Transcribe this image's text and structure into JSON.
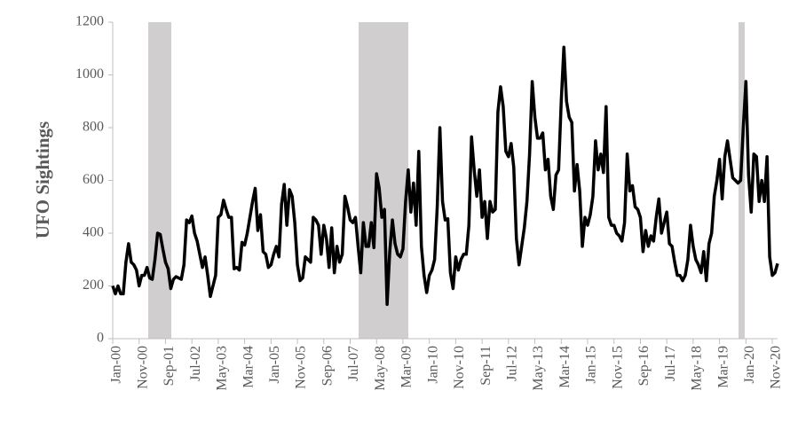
{
  "chart_data": {
    "type": "line",
    "ylabel": "UFO Sightings",
    "categories": [
      "Jan-00",
      null,
      null,
      null,
      null,
      null,
      null,
      null,
      null,
      null,
      "Nov-00",
      null,
      null,
      null,
      null,
      null,
      null,
      null,
      null,
      null,
      "Sep-01",
      null,
      null,
      null,
      null,
      null,
      null,
      null,
      null,
      null,
      "Jul-02",
      null,
      null,
      null,
      null,
      null,
      null,
      null,
      null,
      null,
      "May-03",
      null,
      null,
      null,
      null,
      null,
      null,
      null,
      null,
      null,
      "Mar-04",
      null,
      null,
      null,
      null,
      null,
      null,
      null,
      null,
      null,
      "Jan-05",
      null,
      null,
      null,
      null,
      null,
      null,
      null,
      null,
      null,
      "Nov-05",
      null,
      null,
      null,
      null,
      null,
      null,
      null,
      null,
      null,
      "Sep-06",
      null,
      null,
      null,
      null,
      null,
      null,
      null,
      null,
      null,
      "Jul-07",
      null,
      null,
      null,
      null,
      null,
      null,
      null,
      null,
      null,
      "May-08",
      null,
      null,
      null,
      null,
      null,
      null,
      null,
      null,
      null,
      "Mar-09",
      null,
      null,
      null,
      null,
      null,
      null,
      null,
      null,
      null,
      "Jan-10",
      null,
      null,
      null,
      null,
      null,
      null,
      null,
      null,
      null,
      "Nov-10",
      null,
      null,
      null,
      null,
      null,
      null,
      null,
      null,
      null,
      "Sep-11",
      null,
      null,
      null,
      null,
      null,
      null,
      null,
      null,
      null,
      "Jul-12",
      null,
      null,
      null,
      null,
      null,
      null,
      null,
      null,
      null,
      "May-13",
      null,
      null,
      null,
      null,
      null,
      null,
      null,
      null,
      null,
      "Mar-14",
      null,
      null,
      null,
      null,
      null,
      null,
      null,
      null,
      null,
      "Jan-15",
      null,
      null,
      null,
      null,
      null,
      null,
      null,
      null,
      null,
      "Nov-15",
      null,
      null,
      null,
      null,
      null,
      null,
      null,
      null,
      null,
      "Sep-16",
      null,
      null,
      null,
      null,
      null,
      null,
      null,
      null,
      null,
      "Jul-17",
      null,
      null,
      null,
      null,
      null,
      null,
      null,
      null,
      null,
      "May-18",
      null,
      null,
      null,
      null,
      null,
      null,
      null,
      null,
      null,
      "Mar-19",
      null,
      null,
      null,
      null,
      null,
      null,
      null,
      null,
      null,
      "Jan-20",
      null,
      null,
      null,
      null,
      null,
      null,
      null,
      null,
      null,
      "Nov-20",
      null,
      null
    ],
    "values": [
      200,
      170,
      200,
      170,
      170,
      290,
      360,
      290,
      280,
      260,
      200,
      240,
      240,
      270,
      230,
      225,
      300,
      400,
      395,
      340,
      290,
      265,
      190,
      225,
      235,
      230,
      225,
      280,
      450,
      440,
      465,
      400,
      370,
      320,
      270,
      310,
      240,
      160,
      200,
      240,
      460,
      470,
      525,
      490,
      460,
      460,
      265,
      270,
      260,
      365,
      355,
      400,
      460,
      520,
      570,
      410,
      470,
      330,
      320,
      270,
      280,
      320,
      350,
      310,
      510,
      585,
      430,
      565,
      540,
      440,
      280,
      220,
      230,
      310,
      300,
      290,
      460,
      450,
      430,
      320,
      430,
      380,
      270,
      420,
      250,
      350,
      290,
      320,
      540,
      500,
      450,
      440,
      460,
      350,
      250,
      440,
      350,
      350,
      440,
      345,
      625,
      570,
      460,
      490,
      130,
      330,
      450,
      360,
      320,
      310,
      340,
      520,
      640,
      480,
      590,
      430,
      710,
      350,
      240,
      175,
      240,
      260,
      300,
      500,
      800,
      520,
      450,
      455,
      250,
      190,
      310,
      260,
      300,
      320,
      320,
      430,
      765,
      640,
      540,
      640,
      460,
      520,
      380,
      520,
      480,
      490,
      860,
      955,
      880,
      710,
      690,
      740,
      650,
      380,
      280,
      350,
      420,
      520,
      700,
      975,
      840,
      760,
      760,
      780,
      640,
      680,
      540,
      490,
      620,
      640,
      900,
      1105,
      900,
      840,
      820,
      560,
      660,
      560,
      350,
      460,
      430,
      470,
      540,
      750,
      640,
      700,
      630,
      880,
      460,
      430,
      430,
      400,
      390,
      370,
      440,
      700,
      560,
      580,
      500,
      490,
      460,
      330,
      410,
      350,
      390,
      370,
      460,
      530,
      400,
      440,
      480,
      360,
      350,
      290,
      240,
      240,
      220,
      240,
      300,
      430,
      350,
      300,
      280,
      250,
      330,
      220,
      360,
      400,
      540,
      600,
      680,
      530,
      690,
      750,
      680,
      610,
      600,
      590,
      600,
      800,
      975,
      620,
      480,
      700,
      690,
      520,
      600,
      520,
      690,
      310,
      240,
      250,
      285
    ],
    "color": "#000000",
    "ylim": [
      0,
      1200
    ],
    "yticks": [
      0,
      200,
      400,
      600,
      800,
      1000,
      1200
    ]
  }
}
